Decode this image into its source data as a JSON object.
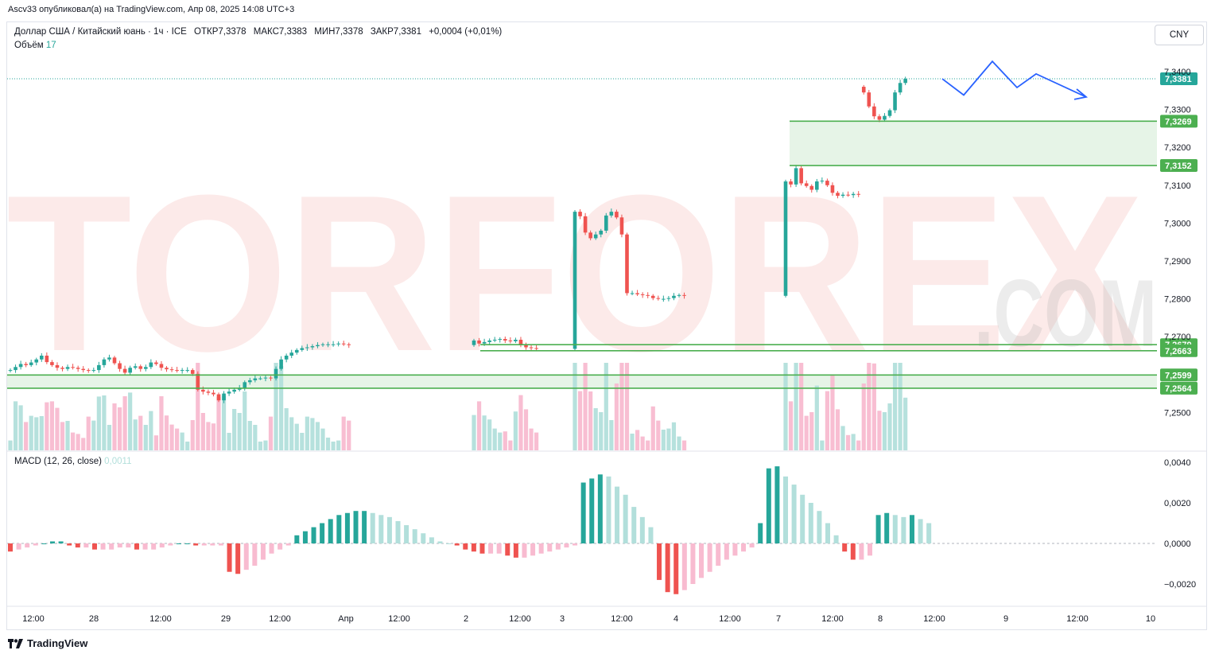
{
  "top_caption": "Ascv33 опубликовал(а) на TradingView.com, Апр 08, 2025 14:08 UTC+3",
  "legend": {
    "symbol": "Доллар США / Китайский юань · 1ч · ICE",
    "open": "ОТКР7,3378",
    "high": "МАКС7,3383",
    "low": "МИН7,3378",
    "close": "ЗАКР7,3381",
    "change": "+0,0004 (+0,01%)",
    "volume_label": "Объём",
    "volume_value": "17"
  },
  "macd_legend": {
    "label": "MACD (12, 26, close)",
    "value": "0,0011"
  },
  "currency_button": "CNY",
  "watermark": {
    "main": "TORFOREX",
    "sub": ".COM"
  },
  "footer_logo": "TradingView",
  "colors": {
    "up": "#26a69a",
    "down": "#ef5350",
    "up_soft": "#b2dfdb",
    "down_soft": "#f8bbd0",
    "level": "#4caf50",
    "forecast": "#2962ff",
    "price_label": "#26a69a"
  },
  "chart_data": [
    {
      "type": "candlestick",
      "ylim": [
        7.243,
        7.345
      ],
      "y_ticks": [
        "7,3400",
        "7,3300",
        "7,3200",
        "7,3100",
        "7,3000",
        "7,2900",
        "7,2800",
        "7,2700",
        "7,2500"
      ],
      "x_ticks": [
        "12:00",
        "28",
        "12:00",
        "29",
        "12:00",
        "Апр",
        "12:00",
        "2",
        "12:00",
        "3",
        "12:00",
        "4",
        "12:00",
        "7",
        "12:00",
        "8",
        "12:00",
        "9",
        "12:00",
        "10"
      ],
      "current_price": "7,3381",
      "levels": [
        "7,3269",
        "7,3152",
        "7,2679",
        "7,2663",
        "7,2599",
        "7,2564"
      ],
      "zones": [
        {
          "from": "7,3152",
          "to": "7,3269"
        },
        {
          "from": "7,2564",
          "to": "7,2599"
        }
      ],
      "series": [
        {
          "segment": "Mar27-Apr01",
          "close": [
            7.2612,
            7.262,
            7.2628,
            7.2625,
            7.2632,
            7.264,
            7.265,
            7.2633,
            7.2625,
            7.2618,
            7.2615,
            7.262,
            7.2618,
            7.2615,
            7.2612,
            7.261,
            7.2612,
            7.2625,
            7.264,
            7.2645,
            7.263,
            7.2615,
            7.2605,
            7.2618,
            7.2622,
            7.2615,
            7.262,
            7.2632,
            7.2628,
            7.2618,
            7.2614,
            7.2612,
            7.261,
            7.2612,
            7.2612,
            7.2602,
            7.256,
            7.2555,
            7.2552,
            7.2548,
            7.2532,
            7.255,
            7.2555,
            7.256,
            7.2565,
            7.258,
            7.2585,
            7.259,
            7.259,
            7.2592,
            7.259,
            7.2615,
            7.264,
            7.265,
            7.2658,
            7.2665,
            7.267,
            7.2672,
            7.2675,
            7.2678,
            7.268,
            7.268,
            7.268,
            7.2682,
            7.268,
            7.2678
          ]
        },
        {
          "segment": "Apr02",
          "close": [
            7.269,
            7.2682,
            7.2686,
            7.269,
            7.2692,
            7.2694,
            7.269,
            7.2688,
            7.2692,
            7.268,
            7.2672,
            7.267,
            7.2668
          ]
        },
        {
          "segment": "Apr03",
          "close": [
            7.303,
            7.3018,
            7.2975,
            7.296,
            7.297,
            7.298,
            7.302,
            7.303,
            7.3015,
            7.297,
            7.2815,
            7.2815,
            7.2812,
            7.281,
            7.2808,
            7.2802,
            7.28,
            7.28,
            7.2802,
            7.2808,
            7.281,
            7.2808
          ]
        },
        {
          "segment": "Apr07-08",
          "close": [
            7.311,
            7.3102,
            7.3145,
            7.3105,
            7.3098,
            7.3088,
            7.311,
            7.3112,
            7.31,
            7.308,
            7.3072,
            7.3075,
            7.3074,
            7.3077,
            7.3075,
            7.3345,
            7.3308,
            7.3282,
            7.3273,
            7.3283,
            7.3298,
            7.3345,
            7.337,
            7.3381
          ]
        }
      ],
      "forecast": {
        "points": [
          7.3381,
          7.3338,
          7.3427,
          7.3358,
          7.3394,
          7.3333
        ]
      },
      "volume_max_label": ""
    },
    {
      "type": "bar",
      "title": "MACD (12, 26, close)",
      "ylim": [
        -0.0028,
        0.0044
      ],
      "y_ticks": [
        "0,0040",
        "0,0020",
        "0,0000",
        "−0,0020"
      ],
      "values": [
        -0.0004,
        -0.0003,
        -0.0002,
        -0.0001,
        0.0,
        0.0001,
        0.0001,
        -0.0001,
        -0.0002,
        -0.0002,
        -0.0003,
        -0.0003,
        -0.0003,
        -0.0002,
        -0.0002,
        -0.0003,
        -0.0003,
        -0.0003,
        -0.0002,
        -0.0001,
        0.0,
        0.0,
        -0.0001,
        -0.0001,
        -0.0001,
        -0.0001,
        -0.0014,
        -0.0015,
        -0.0013,
        -0.0011,
        -0.0008,
        -0.0005,
        -0.0003,
        -0.0001,
        0.0004,
        0.0006,
        0.0008,
        0.001,
        0.0012,
        0.0014,
        0.0015,
        0.0016,
        0.0016,
        0.0015,
        0.0014,
        0.0013,
        0.0011,
        0.0009,
        0.0007,
        0.0005,
        0.0003,
        0.0001,
        0.0,
        -0.0001,
        -0.0003,
        -0.0004,
        -0.0005,
        -0.0005,
        -0.0005,
        -0.0006,
        -0.0007,
        -0.0007,
        -0.0006,
        -0.0005,
        -0.0004,
        -0.0003,
        -0.0002,
        -0.0001,
        0.003,
        0.0032,
        0.0034,
        0.0033,
        0.0028,
        0.0024,
        0.0018,
        0.0013,
        0.0008,
        -0.0018,
        -0.0024,
        -0.0025,
        -0.0023,
        -0.002,
        -0.0017,
        -0.0014,
        -0.0011,
        -0.0008,
        -0.0006,
        -0.0004,
        -0.0002,
        0.001,
        0.0037,
        0.0038,
        0.0033,
        0.0029,
        0.0024,
        0.002,
        0.0016,
        0.001,
        0.0004,
        -0.0004,
        -0.0008,
        -0.0008,
        -0.0006,
        0.0014,
        0.0015,
        0.0014,
        0.0013,
        0.0014,
        0.0012,
        0.001
      ]
    }
  ]
}
